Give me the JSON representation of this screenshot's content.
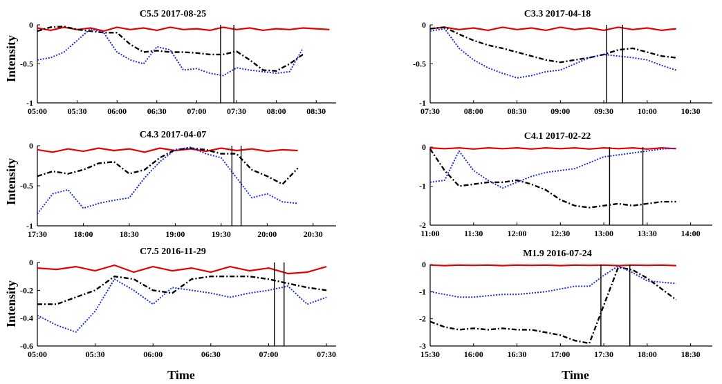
{
  "figure": {
    "ylabel": "Intensity",
    "xlabel": "Time"
  },
  "colors": {
    "red": "#e60000",
    "black": "#000000",
    "blue": "#1f2fd6"
  },
  "chart_data": [
    {
      "type": "line",
      "title": "C5.5  2017-08-25",
      "ylim": [
        -1,
        0
      ],
      "yticks": [
        0,
        -0.5,
        -1
      ],
      "ytick_labels": [
        "0",
        "-0.5",
        "-1"
      ],
      "xlim": [
        "05:00",
        "08:45"
      ],
      "xtick_labels": [
        "05:00",
        "05:30",
        "06:00",
        "06:30",
        "07:00",
        "07:30",
        "08:00",
        "08:30"
      ],
      "vlines": [
        "07:18",
        "07:28"
      ],
      "series": [
        {
          "color": "red",
          "style": "solid",
          "x": [
            "05:00",
            "05:10",
            "05:20",
            "05:30",
            "05:40",
            "05:50",
            "06:00",
            "06:10",
            "06:20",
            "06:30",
            "06:40",
            "06:50",
            "07:00",
            "07:10",
            "07:20",
            "07:30",
            "07:40",
            "07:50",
            "08:00",
            "08:10",
            "08:20",
            "08:30",
            "08:40"
          ],
          "y": [
            -0.04,
            -0.07,
            -0.03,
            -0.06,
            -0.04,
            -0.08,
            -0.03,
            -0.06,
            -0.04,
            -0.07,
            -0.03,
            -0.06,
            -0.05,
            -0.07,
            -0.03,
            -0.06,
            -0.04,
            -0.07,
            -0.05,
            -0.06,
            -0.04,
            -0.05,
            -0.06
          ]
        },
        {
          "color": "black",
          "style": "dashdot",
          "x": [
            "05:00",
            "05:10",
            "05:20",
            "05:30",
            "05:40",
            "05:50",
            "06:00",
            "06:10",
            "06:20",
            "06:30",
            "06:40",
            "06:50",
            "07:00",
            "07:10",
            "07:20",
            "07:30",
            "07:40",
            "07:50",
            "08:00",
            "08:10",
            "08:20"
          ],
          "y": [
            -0.08,
            -0.03,
            -0.02,
            -0.06,
            -0.08,
            -0.1,
            -0.1,
            -0.25,
            -0.35,
            -0.33,
            -0.35,
            -0.35,
            -0.36,
            -0.38,
            -0.38,
            -0.34,
            -0.45,
            -0.58,
            -0.59,
            -0.5,
            -0.38
          ]
        },
        {
          "color": "blue",
          "style": "dotted",
          "x": [
            "05:00",
            "05:10",
            "05:20",
            "05:30",
            "05:40",
            "05:50",
            "06:00",
            "06:10",
            "06:20",
            "06:30",
            "06:40",
            "06:50",
            "07:00",
            "07:10",
            "07:20",
            "07:30",
            "07:40",
            "07:50",
            "08:00",
            "08:10",
            "08:20"
          ],
          "y": [
            -0.45,
            -0.42,
            -0.35,
            -0.2,
            -0.05,
            -0.1,
            -0.35,
            -0.45,
            -0.5,
            -0.28,
            -0.32,
            -0.58,
            -0.56,
            -0.62,
            -0.65,
            -0.55,
            -0.58,
            -0.6,
            -0.62,
            -0.6,
            -0.3
          ]
        }
      ]
    },
    {
      "type": "line",
      "title": "C3.3  2017-04-18",
      "ylim": [
        -1,
        0
      ],
      "yticks": [
        0,
        -0.5,
        -1
      ],
      "ytick_labels": [
        "0",
        "-0.5",
        "-1"
      ],
      "xlim": [
        "07:30",
        "10:45"
      ],
      "xtick_labels": [
        "07:30",
        "08:00",
        "08:30",
        "09:00",
        "09:30",
        "10:00",
        "10:30"
      ],
      "vlines": [
        "09:32",
        "09:43"
      ],
      "series": [
        {
          "color": "red",
          "style": "solid",
          "x": [
            "07:30",
            "07:40",
            "07:50",
            "08:00",
            "08:10",
            "08:20",
            "08:30",
            "08:40",
            "08:50",
            "09:00",
            "09:10",
            "09:20",
            "09:30",
            "09:40",
            "09:50",
            "10:00",
            "10:10",
            "10:20"
          ],
          "y": [
            -0.05,
            -0.03,
            -0.06,
            -0.04,
            -0.07,
            -0.03,
            -0.06,
            -0.04,
            -0.07,
            -0.03,
            -0.06,
            -0.04,
            -0.07,
            -0.03,
            -0.06,
            -0.04,
            -0.07,
            -0.05
          ]
        },
        {
          "color": "black",
          "style": "dashdot",
          "x": [
            "07:30",
            "07:40",
            "07:50",
            "08:00",
            "08:10",
            "08:20",
            "08:30",
            "08:40",
            "08:50",
            "09:00",
            "09:10",
            "09:20",
            "09:30",
            "09:40",
            "09:50",
            "10:00",
            "10:10",
            "10:20"
          ],
          "y": [
            -0.05,
            -0.03,
            -0.12,
            -0.2,
            -0.26,
            -0.3,
            -0.35,
            -0.4,
            -0.45,
            -0.48,
            -0.45,
            -0.42,
            -0.38,
            -0.32,
            -0.3,
            -0.35,
            -0.4,
            -0.42
          ]
        },
        {
          "color": "blue",
          "style": "dotted",
          "x": [
            "07:30",
            "07:40",
            "07:50",
            "08:00",
            "08:10",
            "08:20",
            "08:30",
            "08:40",
            "08:50",
            "09:00",
            "09:10",
            "09:20",
            "09:30",
            "09:40",
            "09:50",
            "10:00",
            "10:10",
            "10:20"
          ],
          "y": [
            -0.08,
            -0.05,
            -0.3,
            -0.45,
            -0.55,
            -0.62,
            -0.68,
            -0.65,
            -0.6,
            -0.58,
            -0.5,
            -0.42,
            -0.38,
            -0.4,
            -0.42,
            -0.45,
            -0.52,
            -0.58
          ]
        }
      ]
    },
    {
      "type": "line",
      "title": "C4.3  2017-04-07",
      "ylim": [
        -1,
        0
      ],
      "yticks": [
        0,
        -0.5,
        -1
      ],
      "ytick_labels": [
        "0",
        "-0.5",
        "-1"
      ],
      "xlim": [
        "17:30",
        "20:45"
      ],
      "xtick_labels": [
        "17:30",
        "18:00",
        "18:30",
        "19:00",
        "19:30",
        "20:00",
        "20:30"
      ],
      "vlines": [
        "19:37",
        "19:43"
      ],
      "series": [
        {
          "color": "red",
          "style": "solid",
          "x": [
            "17:30",
            "17:40",
            "17:50",
            "18:00",
            "18:10",
            "18:20",
            "18:30",
            "18:40",
            "18:50",
            "19:00",
            "19:10",
            "19:20",
            "19:30",
            "19:40",
            "19:50",
            "20:00",
            "20:10",
            "20:20"
          ],
          "y": [
            -0.05,
            -0.08,
            -0.04,
            -0.07,
            -0.03,
            -0.06,
            -0.04,
            -0.08,
            -0.03,
            -0.06,
            -0.04,
            -0.07,
            -0.03,
            -0.06,
            -0.04,
            -0.07,
            -0.05,
            -0.06
          ]
        },
        {
          "color": "black",
          "style": "dashdot",
          "x": [
            "17:30",
            "17:40",
            "17:50",
            "18:00",
            "18:10",
            "18:20",
            "18:30",
            "18:40",
            "18:50",
            "19:00",
            "19:10",
            "19:20",
            "19:30",
            "19:40",
            "19:50",
            "20:00",
            "20:10",
            "20:20"
          ],
          "y": [
            -0.38,
            -0.32,
            -0.35,
            -0.3,
            -0.22,
            -0.2,
            -0.35,
            -0.3,
            -0.15,
            -0.05,
            -0.03,
            -0.05,
            -0.1,
            -0.1,
            -0.3,
            -0.38,
            -0.48,
            -0.28
          ]
        },
        {
          "color": "blue",
          "style": "dotted",
          "x": [
            "17:30",
            "17:40",
            "17:50",
            "18:00",
            "18:10",
            "18:20",
            "18:30",
            "18:40",
            "18:50",
            "19:00",
            "19:10",
            "19:20",
            "19:30",
            "19:40",
            "19:50",
            "20:00",
            "20:10",
            "20:20"
          ],
          "y": [
            -0.85,
            -0.6,
            -0.55,
            -0.78,
            -0.72,
            -0.68,
            -0.65,
            -0.4,
            -0.2,
            -0.05,
            -0.02,
            -0.1,
            -0.15,
            -0.4,
            -0.65,
            -0.6,
            -0.7,
            -0.72
          ]
        }
      ]
    },
    {
      "type": "line",
      "title": "C4.1  2017-02-22",
      "ylim": [
        -2,
        0
      ],
      "yticks": [
        0,
        -1,
        -2
      ],
      "ytick_labels": [
        "0",
        "-1",
        "-2"
      ],
      "xlim": [
        "11:00",
        "14:15"
      ],
      "xtick_labels": [
        "11:00",
        "11:30",
        "12:00",
        "12:30",
        "13:00",
        "13:30",
        "14:00"
      ],
      "vlines": [
        "13:04",
        "13:27"
      ],
      "series": [
        {
          "color": "red",
          "style": "solid",
          "x": [
            "11:00",
            "11:10",
            "11:20",
            "11:30",
            "11:40",
            "11:50",
            "12:00",
            "12:10",
            "12:20",
            "12:30",
            "12:40",
            "12:50",
            "13:00",
            "13:10",
            "13:20",
            "13:30",
            "13:40",
            "13:50"
          ],
          "y": [
            -0.02,
            -0.04,
            -0.02,
            -0.05,
            -0.02,
            -0.04,
            -0.02,
            -0.05,
            -0.02,
            -0.04,
            -0.02,
            -0.05,
            -0.02,
            -0.04,
            -0.02,
            -0.05,
            -0.02,
            -0.04
          ]
        },
        {
          "color": "black",
          "style": "dashdot",
          "x": [
            "11:00",
            "11:10",
            "11:20",
            "11:30",
            "11:40",
            "11:50",
            "12:00",
            "12:10",
            "12:20",
            "12:30",
            "12:40",
            "12:50",
            "13:00",
            "13:10",
            "13:20",
            "13:30",
            "13:40",
            "13:50"
          ],
          "y": [
            -0.05,
            -0.6,
            -1.0,
            -0.95,
            -0.9,
            -0.9,
            -0.85,
            -0.95,
            -1.1,
            -1.35,
            -1.5,
            -1.55,
            -1.5,
            -1.45,
            -1.5,
            -1.45,
            -1.4,
            -1.4
          ]
        },
        {
          "color": "blue",
          "style": "dotted",
          "x": [
            "11:00",
            "11:10",
            "11:20",
            "11:30",
            "11:40",
            "11:50",
            "12:00",
            "12:10",
            "12:20",
            "12:30",
            "12:40",
            "12:50",
            "13:00",
            "13:10",
            "13:20",
            "13:30",
            "13:40",
            "13:50"
          ],
          "y": [
            -0.9,
            -0.85,
            -0.1,
            -0.6,
            -0.85,
            -1.05,
            -0.9,
            -0.75,
            -0.65,
            -0.6,
            -0.55,
            -0.4,
            -0.25,
            -0.2,
            -0.15,
            -0.1,
            -0.05,
            -0.03
          ]
        }
      ]
    },
    {
      "type": "line",
      "title": "C7.5  2016-11-29",
      "ylim": [
        -0.6,
        0
      ],
      "yticks": [
        0,
        -0.2,
        -0.4,
        -0.6
      ],
      "ytick_labels": [
        "0",
        "-0.2",
        "-0.4",
        "-0.6"
      ],
      "xlim": [
        "05:00",
        "07:35"
      ],
      "xtick_labels": [
        "05:00",
        "05:30",
        "06:00",
        "06:30",
        "07:00",
        "07:30"
      ],
      "vlines": [
        "07:03",
        "07:08"
      ],
      "series": [
        {
          "color": "red",
          "style": "solid",
          "x": [
            "05:00",
            "05:10",
            "05:20",
            "05:30",
            "05:40",
            "05:50",
            "06:00",
            "06:10",
            "06:20",
            "06:30",
            "06:40",
            "06:50",
            "07:00",
            "07:10",
            "07:20",
            "07:30"
          ],
          "y": [
            -0.04,
            -0.05,
            -0.03,
            -0.06,
            -0.02,
            -0.07,
            -0.03,
            -0.06,
            -0.04,
            -0.07,
            -0.03,
            -0.06,
            -0.04,
            -0.08,
            -0.07,
            -0.03
          ]
        },
        {
          "color": "black",
          "style": "dashdot",
          "x": [
            "05:00",
            "05:10",
            "05:20",
            "05:30",
            "05:40",
            "05:50",
            "06:00",
            "06:10",
            "06:20",
            "06:30",
            "06:40",
            "06:50",
            "07:00",
            "07:10",
            "07:20",
            "07:30"
          ],
          "y": [
            -0.3,
            -0.3,
            -0.25,
            -0.2,
            -0.1,
            -0.12,
            -0.2,
            -0.22,
            -0.12,
            -0.1,
            -0.1,
            -0.1,
            -0.12,
            -0.15,
            -0.18,
            -0.2
          ]
        },
        {
          "color": "blue",
          "style": "dotted",
          "x": [
            "05:00",
            "05:10",
            "05:20",
            "05:30",
            "05:40",
            "05:50",
            "06:00",
            "06:10",
            "06:20",
            "06:30",
            "06:40",
            "06:50",
            "07:00",
            "07:10",
            "07:20",
            "07:30"
          ],
          "y": [
            -0.38,
            -0.45,
            -0.5,
            -0.35,
            -0.12,
            -0.2,
            -0.3,
            -0.18,
            -0.2,
            -0.22,
            -0.25,
            -0.22,
            -0.2,
            -0.17,
            -0.3,
            -0.25
          ]
        }
      ]
    },
    {
      "type": "line",
      "title": "M1.9  2016-07-24",
      "ylim": [
        -3,
        0
      ],
      "yticks": [
        0,
        -1,
        -2,
        -3
      ],
      "ytick_labels": [
        "0",
        "-1",
        "-2",
        "-3"
      ],
      "xlim": [
        "15:30",
        "18:45"
      ],
      "xtick_labels": [
        "15:30",
        "16:00",
        "16:30",
        "17:00",
        "17:30",
        "18:00",
        "18:30"
      ],
      "vlines": [
        "17:28",
        "17:48"
      ],
      "series": [
        {
          "color": "red",
          "style": "solid",
          "x": [
            "15:30",
            "15:40",
            "15:50",
            "16:00",
            "16:10",
            "16:20",
            "16:30",
            "16:40",
            "16:50",
            "17:00",
            "17:10",
            "17:20",
            "17:30",
            "17:40",
            "17:50",
            "18:00",
            "18:10",
            "18:20"
          ],
          "y": [
            -0.02,
            -0.04,
            -0.02,
            -0.03,
            -0.02,
            -0.04,
            -0.02,
            -0.03,
            -0.02,
            -0.04,
            -0.02,
            -0.03,
            -0.02,
            -0.04,
            -0.02,
            -0.03,
            -0.02,
            -0.04
          ]
        },
        {
          "color": "black",
          "style": "dashdot",
          "x": [
            "15:30",
            "15:40",
            "15:50",
            "16:00",
            "16:10",
            "16:20",
            "16:30",
            "16:40",
            "16:50",
            "17:00",
            "17:10",
            "17:20",
            "17:30",
            "17:40",
            "17:50",
            "18:00",
            "18:10",
            "18:20"
          ],
          "y": [
            -2.1,
            -2.3,
            -2.4,
            -2.35,
            -2.4,
            -2.35,
            -2.4,
            -2.4,
            -2.5,
            -2.6,
            -2.8,
            -2.9,
            -1.5,
            -0.1,
            -0.2,
            -0.5,
            -0.9,
            -1.3
          ]
        },
        {
          "color": "blue",
          "style": "dotted",
          "x": [
            "15:30",
            "15:40",
            "15:50",
            "16:00",
            "16:10",
            "16:20",
            "16:30",
            "16:40",
            "16:50",
            "17:00",
            "17:10",
            "17:20",
            "17:30",
            "17:40",
            "17:50",
            "18:00",
            "18:10",
            "18:20"
          ],
          "y": [
            -1.0,
            -1.1,
            -1.2,
            -1.2,
            -1.15,
            -1.1,
            -1.1,
            -1.05,
            -1.0,
            -0.9,
            -0.8,
            -0.8,
            -0.4,
            -0.05,
            -0.3,
            -0.6,
            -0.65,
            -0.7
          ]
        }
      ]
    }
  ]
}
